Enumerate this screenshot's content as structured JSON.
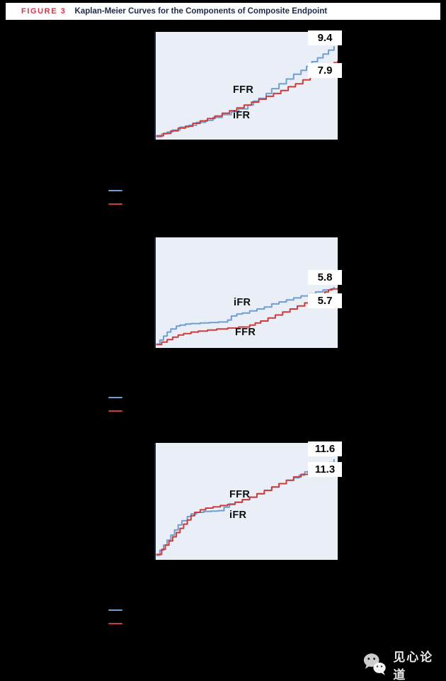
{
  "figure_header": {
    "label": "FIGURE 3",
    "title": "Kaplan-Meier Curves for the Components of Composite Endpoint"
  },
  "colors": {
    "background": "#000000",
    "panel_bg": "#e9eef7",
    "panel_axis": "#16243c",
    "ifr_blue": "#6f9fd3",
    "ffr_red": "#cd3c3c",
    "chip_bg": "#ffffff",
    "chip_text": "#000000"
  },
  "legend": {
    "entries": [
      {
        "series": "iFR",
        "color": "#6f9fd3"
      },
      {
        "series": "FFR",
        "color": "#cd3c3c"
      }
    ]
  },
  "watermark": {
    "text": "见心论道"
  },
  "chart_data": [
    {
      "type": "line",
      "panel": "top",
      "ylim": [
        0,
        10.6
      ],
      "series": [
        {
          "name": "iFR",
          "color": "#6f9fd3",
          "end_value": 9.4,
          "end_label": "9.4",
          "points": [
            [
              0.01,
              0
            ],
            [
              0.04,
              0.3
            ],
            [
              0.07,
              0.5
            ],
            [
              0.1,
              0.7
            ],
            [
              0.14,
              1.0
            ],
            [
              0.19,
              1.2
            ],
            [
              0.23,
              1.5
            ],
            [
              0.28,
              1.7
            ],
            [
              0.32,
              2.0
            ],
            [
              0.37,
              2.3
            ],
            [
              0.42,
              2.6
            ],
            [
              0.46,
              2.9
            ],
            [
              0.51,
              3.3
            ],
            [
              0.54,
              3.7
            ],
            [
              0.57,
              4.0
            ],
            [
              0.61,
              4.5
            ],
            [
              0.64,
              5.0
            ],
            [
              0.68,
              5.5
            ],
            [
              0.72,
              6.0
            ],
            [
              0.76,
              6.5
            ],
            [
              0.8,
              6.9
            ],
            [
              0.83,
              7.3
            ],
            [
              0.86,
              7.8
            ],
            [
              0.89,
              8.2
            ],
            [
              0.92,
              8.6
            ],
            [
              0.95,
              9.0
            ],
            [
              0.98,
              9.4
            ]
          ]
        },
        {
          "name": "FFR",
          "color": "#cd3c3c",
          "end_value": 7.9,
          "end_label": "7.9",
          "points": [
            [
              0.01,
              0.1
            ],
            [
              0.05,
              0.35
            ],
            [
              0.09,
              0.6
            ],
            [
              0.13,
              0.9
            ],
            [
              0.17,
              1.1
            ],
            [
              0.21,
              1.4
            ],
            [
              0.25,
              1.65
            ],
            [
              0.29,
              1.9
            ],
            [
              0.33,
              2.15
            ],
            [
              0.37,
              2.45
            ],
            [
              0.41,
              2.7
            ],
            [
              0.45,
              3.0
            ],
            [
              0.49,
              3.3
            ],
            [
              0.53,
              3.6
            ],
            [
              0.57,
              3.9
            ],
            [
              0.61,
              4.2
            ],
            [
              0.65,
              4.5
            ],
            [
              0.69,
              4.8
            ],
            [
              0.73,
              5.2
            ],
            [
              0.77,
              5.5
            ],
            [
              0.81,
              5.9
            ],
            [
              0.85,
              6.3
            ],
            [
              0.89,
              6.7
            ],
            [
              0.92,
              7.1
            ],
            [
              0.95,
              7.4
            ],
            [
              0.98,
              7.7
            ],
            [
              1.0,
              7.9
            ]
          ]
        }
      ]
    },
    {
      "type": "line",
      "panel": "middle",
      "ylim": [
        0,
        10.45
      ],
      "series": [
        {
          "name": "iFR",
          "color": "#6f9fd3",
          "end_value": 5.8,
          "end_label": "5.8",
          "points": [
            [
              0.01,
              0.1
            ],
            [
              0.03,
              0.5
            ],
            [
              0.05,
              0.9
            ],
            [
              0.07,
              1.3
            ],
            [
              0.09,
              1.6
            ],
            [
              0.12,
              1.9
            ],
            [
              0.14,
              2.0
            ],
            [
              0.17,
              2.1
            ],
            [
              0.2,
              2.15
            ],
            [
              0.25,
              2.2
            ],
            [
              0.3,
              2.25
            ],
            [
              0.35,
              2.3
            ],
            [
              0.4,
              2.5
            ],
            [
              0.42,
              2.9
            ],
            [
              0.45,
              3.1
            ],
            [
              0.48,
              3.2
            ],
            [
              0.52,
              3.4
            ],
            [
              0.56,
              3.6
            ],
            [
              0.6,
              3.8
            ],
            [
              0.64,
              4.1
            ],
            [
              0.68,
              4.3
            ],
            [
              0.72,
              4.5
            ],
            [
              0.76,
              4.7
            ],
            [
              0.8,
              4.9
            ],
            [
              0.84,
              5.1
            ],
            [
              0.88,
              5.3
            ],
            [
              0.92,
              5.5
            ],
            [
              0.96,
              5.6
            ],
            [
              0.98,
              5.8
            ]
          ]
        },
        {
          "name": "FFR",
          "color": "#cd3c3c",
          "end_value": 5.7,
          "end_label": "5.7",
          "points": [
            [
              0.01,
              0.05
            ],
            [
              0.04,
              0.3
            ],
            [
              0.07,
              0.55
            ],
            [
              0.1,
              0.8
            ],
            [
              0.13,
              1.0
            ],
            [
              0.16,
              1.15
            ],
            [
              0.2,
              1.3
            ],
            [
              0.24,
              1.4
            ],
            [
              0.29,
              1.5
            ],
            [
              0.34,
              1.6
            ],
            [
              0.4,
              1.7
            ],
            [
              0.46,
              1.8
            ],
            [
              0.52,
              2.0
            ],
            [
              0.55,
              2.2
            ],
            [
              0.58,
              2.4
            ],
            [
              0.62,
              2.7
            ],
            [
              0.66,
              3.0
            ],
            [
              0.7,
              3.3
            ],
            [
              0.74,
              3.6
            ],
            [
              0.78,
              3.9
            ],
            [
              0.82,
              4.2
            ],
            [
              0.86,
              4.6
            ],
            [
              0.9,
              5.0
            ],
            [
              0.93,
              5.3
            ],
            [
              0.95,
              5.5
            ],
            [
              0.97,
              5.6
            ],
            [
              1.0,
              5.7
            ]
          ]
        }
      ]
    },
    {
      "type": "line",
      "panel": "bottom",
      "ylim": [
        0,
        13.2
      ],
      "series": [
        {
          "name": "iFR",
          "color": "#6f9fd3",
          "end_value": 11.6,
          "end_label": "11.6",
          "points": [
            [
              0.01,
              0.2
            ],
            [
              0.03,
              0.8
            ],
            [
              0.05,
              1.4
            ],
            [
              0.07,
              2.0
            ],
            [
              0.09,
              2.6
            ],
            [
              0.11,
              3.2
            ],
            [
              0.13,
              3.8
            ],
            [
              0.15,
              4.3
            ],
            [
              0.18,
              4.8
            ],
            [
              0.2,
              5.1
            ],
            [
              0.23,
              5.3
            ],
            [
              0.27,
              5.4
            ],
            [
              0.31,
              5.45
            ],
            [
              0.35,
              5.5
            ],
            [
              0.38,
              5.9
            ],
            [
              0.41,
              6.3
            ],
            [
              0.44,
              6.5
            ],
            [
              0.48,
              6.8
            ],
            [
              0.52,
              7.1
            ],
            [
              0.56,
              7.5
            ],
            [
              0.6,
              7.9
            ],
            [
              0.64,
              8.3
            ],
            [
              0.68,
              8.7
            ],
            [
              0.72,
              9.1
            ],
            [
              0.76,
              9.4
            ],
            [
              0.79,
              9.7
            ],
            [
              0.82,
              10.1
            ],
            [
              0.86,
              10.5
            ],
            [
              0.89,
              10.8
            ],
            [
              0.92,
              11.0
            ],
            [
              0.95,
              11.2
            ],
            [
              0.98,
              11.6
            ]
          ]
        },
        {
          "name": "FFR",
          "color": "#cd3c3c",
          "end_value": 11.3,
          "end_label": "11.3",
          "points": [
            [
              0.01,
              0.3
            ],
            [
              0.04,
              0.9
            ],
            [
              0.06,
              1.4
            ],
            [
              0.08,
              1.9
            ],
            [
              0.1,
              2.4
            ],
            [
              0.12,
              2.9
            ],
            [
              0.14,
              3.4
            ],
            [
              0.16,
              3.9
            ],
            [
              0.18,
              4.4
            ],
            [
              0.2,
              4.9
            ],
            [
              0.22,
              5.3
            ],
            [
              0.25,
              5.6
            ],
            [
              0.28,
              5.8
            ],
            [
              0.32,
              5.95
            ],
            [
              0.36,
              6.1
            ],
            [
              0.4,
              6.25
            ],
            [
              0.44,
              6.5
            ],
            [
              0.48,
              6.8
            ],
            [
              0.52,
              7.1
            ],
            [
              0.56,
              7.5
            ],
            [
              0.6,
              7.9
            ],
            [
              0.64,
              8.3
            ],
            [
              0.68,
              8.7
            ],
            [
              0.72,
              9.1
            ],
            [
              0.76,
              9.5
            ],
            [
              0.8,
              9.8
            ],
            [
              0.84,
              10.2
            ],
            [
              0.88,
              10.5
            ],
            [
              0.92,
              10.8
            ],
            [
              0.96,
              11.1
            ],
            [
              1.0,
              11.3
            ]
          ]
        }
      ]
    }
  ]
}
